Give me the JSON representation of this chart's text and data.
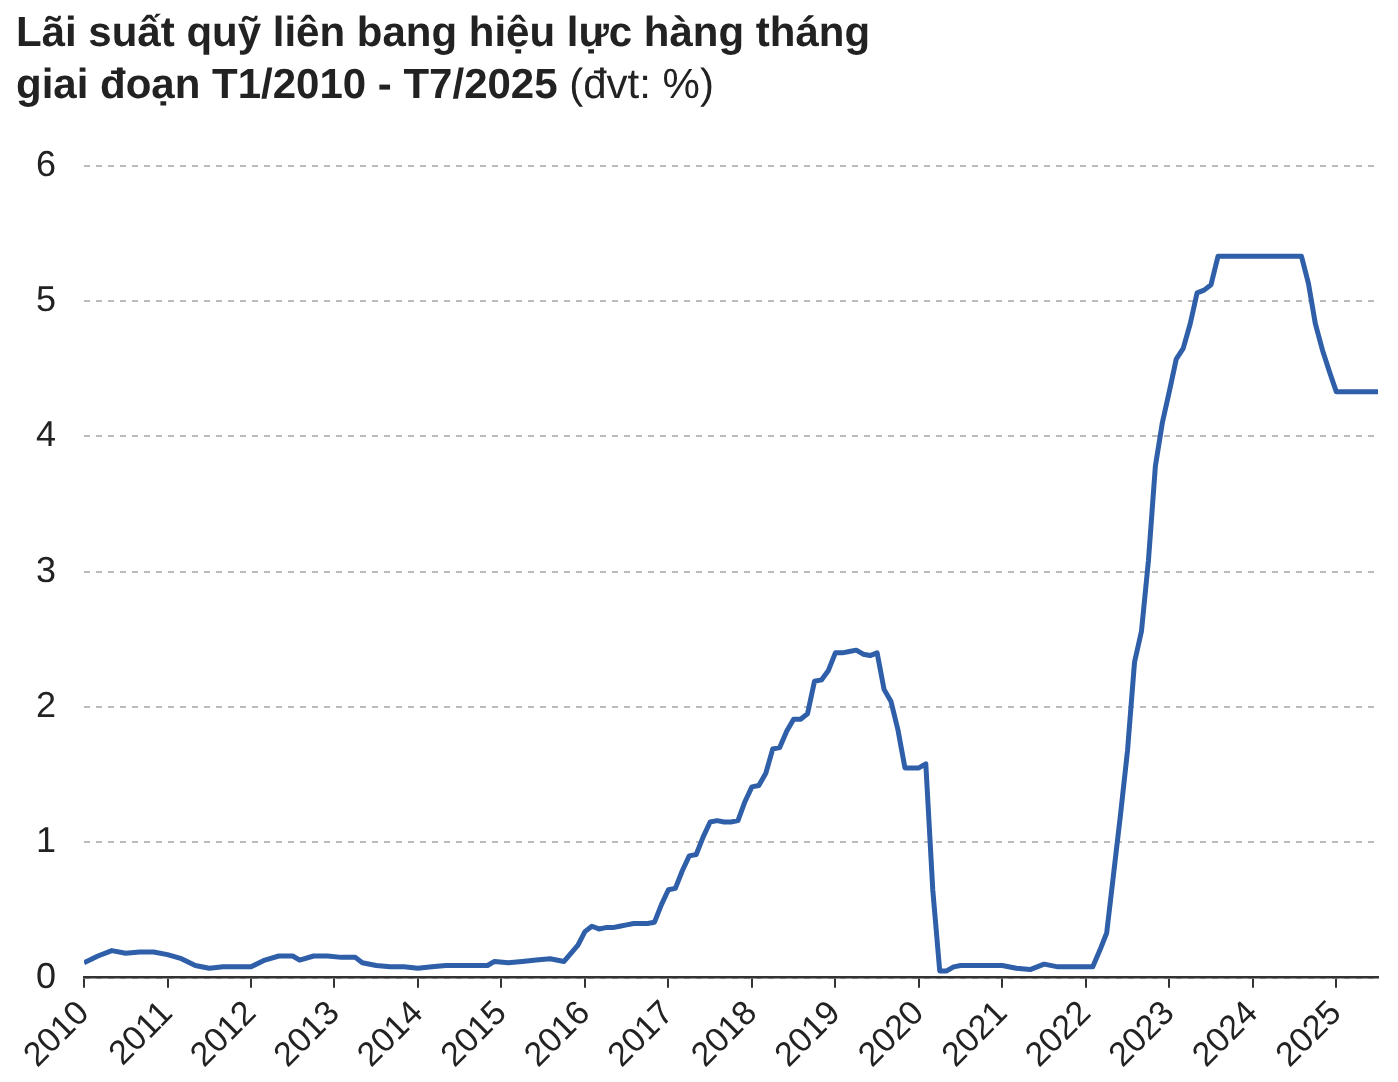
{
  "chart_data": {
    "type": "line",
    "title": "Lãi suất quỹ liên bang hiệu lực hàng tháng\ngiai đoạn T1/2010 - T7/2025",
    "subtitle": "(đvt: %)",
    "x": [
      "2010-01",
      "2010-03",
      "2010-05",
      "2010-07",
      "2010-09",
      "2010-11",
      "2011-01",
      "2011-03",
      "2011-05",
      "2011-07",
      "2011-09",
      "2011-11",
      "2012-01",
      "2012-03",
      "2012-05",
      "2012-07",
      "2012-08",
      "2012-10",
      "2012-12",
      "2013-02",
      "2013-04",
      "2013-05",
      "2013-07",
      "2013-09",
      "2013-11",
      "2014-01",
      "2014-03",
      "2014-05",
      "2014-07",
      "2014-09",
      "2014-11",
      "2014-12",
      "2015-02",
      "2015-04",
      "2015-06",
      "2015-08",
      "2015-10",
      "2015-12",
      "2016-01",
      "2016-02",
      "2016-03",
      "2016-04",
      "2016-05",
      "2016-06",
      "2016-07",
      "2016-08",
      "2016-09",
      "2016-10",
      "2016-11",
      "2016-12",
      "2017-01",
      "2017-02",
      "2017-03",
      "2017-04",
      "2017-05",
      "2017-06",
      "2017-07",
      "2017-08",
      "2017-09",
      "2017-10",
      "2017-11",
      "2017-12",
      "2018-01",
      "2018-02",
      "2018-03",
      "2018-04",
      "2018-05",
      "2018-06",
      "2018-07",
      "2018-08",
      "2018-09",
      "2018-10",
      "2018-11",
      "2018-12",
      "2019-01",
      "2019-02",
      "2019-03",
      "2019-04",
      "2019-05",
      "2019-06",
      "2019-07",
      "2019-08",
      "2019-09",
      "2019-10",
      "2019-11",
      "2019-12",
      "2020-01",
      "2020-02",
      "2020-03",
      "2020-04",
      "2020-05",
      "2020-06",
      "2020-07",
      "2020-09",
      "2020-11",
      "2021-01",
      "2021-03",
      "2021-05",
      "2021-07",
      "2021-09",
      "2021-11",
      "2022-01",
      "2022-02",
      "2022-03",
      "2022-04",
      "2022-05",
      "2022-06",
      "2022-07",
      "2022-08",
      "2022-09",
      "2022-10",
      "2022-11",
      "2022-12",
      "2023-01",
      "2023-02",
      "2023-03",
      "2023-04",
      "2023-05",
      "2023-06",
      "2023-07",
      "2023-08",
      "2024-08",
      "2024-09",
      "2024-10",
      "2024-11",
      "2024-12",
      "2025-01",
      "2025-07"
    ],
    "series": [
      {
        "color": "#2e5fa8",
        "values": [
          0.11,
          0.16,
          0.2,
          0.18,
          0.19,
          0.19,
          0.17,
          0.14,
          0.09,
          0.07,
          0.08,
          0.08,
          0.08,
          0.13,
          0.16,
          0.16,
          0.13,
          0.16,
          0.16,
          0.15,
          0.15,
          0.11,
          0.09,
          0.08,
          0.08,
          0.07,
          0.08,
          0.09,
          0.09,
          0.09,
          0.09,
          0.12,
          0.11,
          0.12,
          0.13,
          0.14,
          0.12,
          0.24,
          0.34,
          0.38,
          0.36,
          0.37,
          0.37,
          0.38,
          0.39,
          0.4,
          0.4,
          0.4,
          0.41,
          0.54,
          0.65,
          0.66,
          0.79,
          0.9,
          0.91,
          1.04,
          1.15,
          1.16,
          1.15,
          1.15,
          1.16,
          1.3,
          1.41,
          1.42,
          1.51,
          1.69,
          1.7,
          1.82,
          1.91,
          1.91,
          1.95,
          2.19,
          2.2,
          2.27,
          2.4,
          2.4,
          2.41,
          2.42,
          2.39,
          2.38,
          2.4,
          2.13,
          2.04,
          1.83,
          1.55,
          1.55,
          1.55,
          1.58,
          0.65,
          0.05,
          0.05,
          0.08,
          0.09,
          0.09,
          0.09,
          0.09,
          0.07,
          0.06,
          0.1,
          0.08,
          0.08,
          0.08,
          0.08,
          0.2,
          0.33,
          0.77,
          1.21,
          1.68,
          2.33,
          2.56,
          3.08,
          3.78,
          4.1,
          4.33,
          4.57,
          4.65,
          4.83,
          5.06,
          5.08,
          5.12,
          5.33,
          5.33,
          5.13,
          4.83,
          4.64,
          4.48,
          4.33,
          4.33
        ]
      }
    ],
    "xlim": [
      "2010-01",
      "2025-07"
    ],
    "xticks": [
      "2010",
      "2011",
      "2012",
      "2013",
      "2014",
      "2015",
      "2016",
      "2017",
      "2018",
      "2019",
      "2020",
      "2021",
      "2022",
      "2023",
      "2024",
      "2025"
    ],
    "ylim": [
      0,
      6
    ],
    "yticks": [
      0,
      1,
      2,
      3,
      4,
      5,
      6
    ],
    "grid": "y",
    "legend": false,
    "marker": "none",
    "line_style": "solid"
  }
}
